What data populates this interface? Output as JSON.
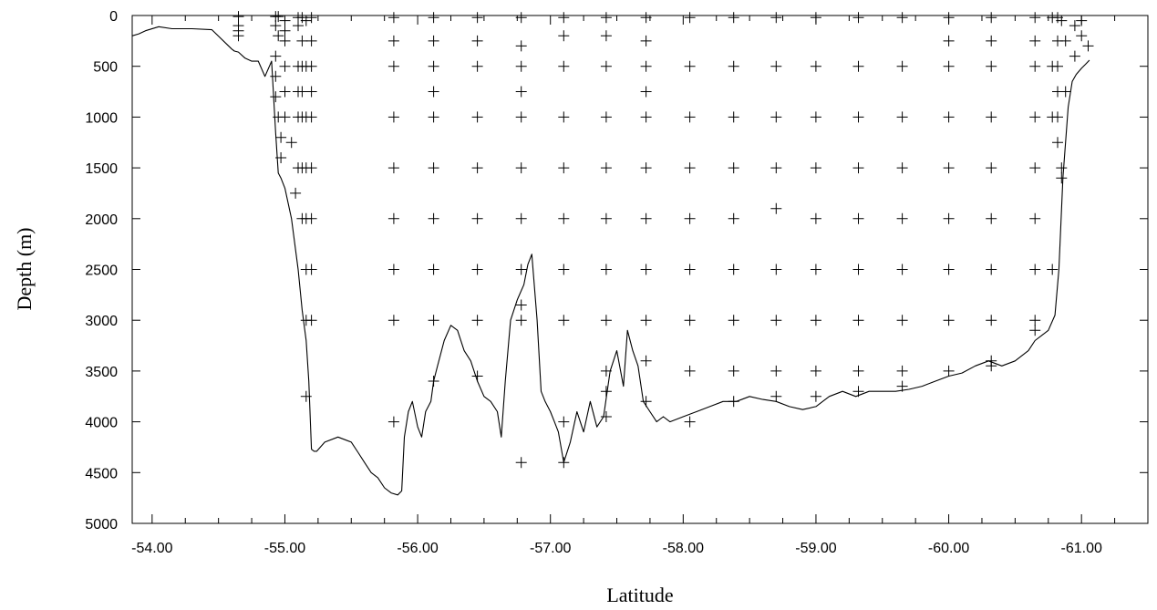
{
  "chart_data": {
    "type": "scatter",
    "title": "",
    "xlabel": "Latitude",
    "ylabel": "Depth (m)",
    "xlim": [
      -53.85,
      -61.5
    ],
    "ylim": [
      0,
      5000
    ],
    "y_inverted": true,
    "grid": false,
    "x_ticks": [
      "-54.00",
      "-55.00",
      "-56.00",
      "-57.00",
      "-58.00",
      "-59.00",
      "-60.00",
      "-61.00"
    ],
    "x_tick_values": [
      -54,
      -55,
      -56,
      -57,
      -58,
      -59,
      -60,
      -61
    ],
    "y_ticks": [
      "0",
      "500",
      "1000",
      "1500",
      "2000",
      "2500",
      "3000",
      "3500",
      "4000",
      "4500",
      "5000"
    ],
    "y_tick_values": [
      0,
      500,
      1000,
      1500,
      2000,
      2500,
      3000,
      3500,
      4000,
      4500,
      5000
    ],
    "series": [
      {
        "kind": "line",
        "x": [
          -53.85,
          -53.9,
          -53.95,
          -54.05,
          -54.15,
          -54.3,
          -54.45,
          -54.6,
          -54.62,
          -54.65,
          -54.7,
          -54.75,
          -54.8,
          -54.85,
          -54.9,
          -54.93,
          -54.95,
          -54.97,
          -55.0,
          -55.05,
          -55.1,
          -55.13,
          -55.16,
          -55.18,
          -55.2,
          -55.22,
          -55.24,
          -55.3,
          -55.4,
          -55.5,
          -55.55,
          -55.6,
          -55.65,
          -55.7,
          -55.75,
          -55.8,
          -55.85,
          -55.88,
          -55.9,
          -55.93,
          -55.96,
          -56.0,
          -56.03,
          -56.06,
          -56.1,
          -56.12,
          -56.15,
          -56.2,
          -56.25,
          -56.3,
          -56.35,
          -56.4,
          -56.45,
          -56.5,
          -56.55,
          -56.6,
          -56.63,
          -56.66,
          -56.7,
          -56.75,
          -56.8,
          -56.83,
          -56.86,
          -56.9,
          -56.93,
          -56.96,
          -57.0,
          -57.03,
          -57.06,
          -57.1,
          -57.15,
          -57.2,
          -57.25,
          -57.3,
          -57.35,
          -57.4,
          -57.45,
          -57.5,
          -57.55,
          -57.58,
          -57.62,
          -57.66,
          -57.7,
          -57.75,
          -57.8,
          -57.85,
          -57.9,
          -58.0,
          -58.1,
          -58.2,
          -58.3,
          -58.4,
          -58.5,
          -58.6,
          -58.7,
          -58.8,
          -58.9,
          -59.0,
          -59.1,
          -59.2,
          -59.3,
          -59.4,
          -59.5,
          -59.6,
          -59.7,
          -59.8,
          -59.9,
          -60.0,
          -60.1,
          -60.2,
          -60.3,
          -60.4,
          -60.5,
          -60.6,
          -60.65,
          -60.7,
          -60.75,
          -60.8,
          -60.83,
          -60.86,
          -60.9,
          -60.93,
          -60.96,
          -61.0,
          -61.03,
          -61.06
        ],
        "y": [
          200,
          180,
          150,
          110,
          130,
          130,
          140,
          330,
          350,
          360,
          420,
          450,
          450,
          600,
          450,
          1150,
          1550,
          1600,
          1700,
          2000,
          2500,
          2900,
          3200,
          3600,
          4270,
          4290,
          4290,
          4200,
          4150,
          4200,
          4300,
          4400,
          4500,
          4550,
          4650,
          4700,
          4720,
          4680,
          4150,
          3900,
          3800,
          4050,
          4150,
          3900,
          3800,
          3600,
          3450,
          3200,
          3050,
          3100,
          3300,
          3400,
          3600,
          3750,
          3800,
          3900,
          4150,
          3600,
          3000,
          2800,
          2650,
          2450,
          2350,
          3000,
          3700,
          3800,
          3900,
          4000,
          4100,
          4400,
          4200,
          3900,
          4100,
          3800,
          4050,
          3950,
          3500,
          3300,
          3650,
          3100,
          3300,
          3450,
          3800,
          3900,
          4000,
          3950,
          4000,
          3950,
          3900,
          3850,
          3800,
          3800,
          3750,
          3780,
          3800,
          3850,
          3880,
          3850,
          3750,
          3700,
          3750,
          3700,
          3700,
          3700,
          3680,
          3650,
          3600,
          3550,
          3520,
          3450,
          3400,
          3450,
          3400,
          3300,
          3200,
          3150,
          3100,
          2950,
          2500,
          1600,
          900,
          650,
          580,
          520,
          480,
          440
        ]
      },
      {
        "kind": "points",
        "marker": "+",
        "x": [
          -54.65,
          -54.65,
          -54.65,
          -54.65,
          -54.93,
          -54.93,
          -54.93,
          -54.93,
          -54.93,
          -54.95,
          -54.95,
          -54.95,
          -54.97,
          -54.97,
          -55.0,
          -55.0,
          -55.0,
          -55.0,
          -55.0,
          -55.0,
          -55.05,
          -55.08,
          -55.1,
          -55.1,
          -55.1,
          -55.1,
          -55.1,
          -55.1,
          -55.13,
          -55.13,
          -55.13,
          -55.13,
          -55.13,
          -55.13,
          -55.13,
          -55.16,
          -55.16,
          -55.16,
          -55.16,
          -55.16,
          -55.16,
          -55.16,
          -55.16,
          -55.2,
          -55.2,
          -55.2,
          -55.2,
          -55.2,
          -55.2,
          -55.2,
          -55.2,
          -55.2,
          -55.82,
          -55.82,
          -55.82,
          -55.82,
          -55.82,
          -55.82,
          -55.82,
          -55.82,
          -55.82,
          -56.12,
          -56.12,
          -56.12,
          -56.12,
          -56.12,
          -56.12,
          -56.12,
          -56.12,
          -56.12,
          -56.12,
          -56.45,
          -56.45,
          -56.45,
          -56.45,
          -56.45,
          -56.45,
          -56.45,
          -56.45,
          -56.45,
          -56.78,
          -56.78,
          -56.78,
          -56.78,
          -56.78,
          -56.78,
          -56.78,
          -56.78,
          -56.78,
          -56.78,
          -56.78,
          -57.1,
          -57.1,
          -57.1,
          -57.1,
          -57.1,
          -57.1,
          -57.1,
          -57.1,
          -57.1,
          -57.1,
          -57.42,
          -57.42,
          -57.42,
          -57.42,
          -57.42,
          -57.42,
          -57.42,
          -57.42,
          -57.42,
          -57.42,
          -57.42,
          -57.72,
          -57.72,
          -57.72,
          -57.72,
          -57.72,
          -57.72,
          -57.72,
          -57.72,
          -57.72,
          -57.72,
          -57.72,
          -58.05,
          -58.05,
          -58.05,
          -58.05,
          -58.05,
          -58.05,
          -58.05,
          -58.05,
          -58.05,
          -58.38,
          -58.38,
          -58.38,
          -58.38,
          -58.38,
          -58.38,
          -58.38,
          -58.38,
          -58.38,
          -58.7,
          -58.7,
          -58.7,
          -58.7,
          -58.7,
          -58.7,
          -58.7,
          -58.7,
          -58.7,
          -59.0,
          -59.0,
          -59.0,
          -59.0,
          -59.0,
          -59.0,
          -59.0,
          -59.0,
          -59.0,
          -59.32,
          -59.32,
          -59.32,
          -59.32,
          -59.32,
          -59.32,
          -59.32,
          -59.32,
          -59.32,
          -59.65,
          -59.65,
          -59.65,
          -59.65,
          -59.65,
          -59.65,
          -59.65,
          -59.65,
          -59.65,
          -60.0,
          -60.0,
          -60.0,
          -60.0,
          -60.0,
          -60.0,
          -60.0,
          -60.0,
          -60.0,
          -60.32,
          -60.32,
          -60.32,
          -60.32,
          -60.32,
          -60.32,
          -60.32,
          -60.32,
          -60.32,
          -60.32,
          -60.65,
          -60.65,
          -60.65,
          -60.65,
          -60.65,
          -60.65,
          -60.65,
          -60.65,
          -60.65,
          -60.78,
          -60.78,
          -60.78,
          -60.78,
          -60.82,
          -60.82,
          -60.82,
          -60.82,
          -60.82,
          -60.82,
          -60.85,
          -60.85,
          -60.85,
          -60.88,
          -60.88,
          -60.95,
          -60.95,
          -61.0,
          -61.0,
          -61.05
        ],
        "y": [
          10,
          100,
          150,
          200,
          10,
          100,
          400,
          600,
          800,
          10,
          200,
          1000,
          1200,
          1400,
          50,
          150,
          250,
          500,
          750,
          1000,
          1250,
          1750,
          20,
          100,
          500,
          750,
          1000,
          1500,
          20,
          250,
          500,
          750,
          1000,
          1500,
          2000,
          50,
          500,
          1000,
          1500,
          2000,
          2500,
          3000,
          3750,
          20,
          250,
          500,
          750,
          1000,
          1500,
          2000,
          2500,
          3000,
          20,
          250,
          500,
          1000,
          1500,
          2000,
          2500,
          3000,
          4000,
          20,
          250,
          500,
          750,
          1000,
          1500,
          2000,
          2500,
          3000,
          3600,
          20,
          250,
          500,
          1000,
          1500,
          2000,
          2500,
          3000,
          3550,
          20,
          300,
          500,
          750,
          1000,
          1500,
          2000,
          2500,
          2850,
          3000,
          4400,
          20,
          200,
          500,
          1000,
          1500,
          2000,
          2500,
          3000,
          4000,
          4400,
          20,
          200,
          500,
          1000,
          1500,
          2000,
          2500,
          3000,
          3500,
          3950,
          3700,
          20,
          250,
          500,
          750,
          1000,
          1500,
          2000,
          2500,
          3000,
          3400,
          3800,
          20,
          500,
          1000,
          1500,
          2000,
          2500,
          3000,
          3500,
          4000,
          20,
          500,
          1000,
          1500,
          2000,
          2500,
          3000,
          3500,
          3800,
          20,
          500,
          1000,
          1500,
          1900,
          2500,
          3000,
          3500,
          3750,
          20,
          500,
          1000,
          1500,
          2000,
          2500,
          3000,
          3500,
          3750,
          20,
          500,
          1000,
          1500,
          2000,
          2500,
          3000,
          3500,
          3700,
          20,
          500,
          1000,
          1500,
          2000,
          2500,
          3000,
          3500,
          3650,
          20,
          250,
          500,
          1000,
          1500,
          2000,
          2500,
          3000,
          3500,
          20,
          250,
          500,
          1000,
          1500,
          2000,
          2500,
          3000,
          3400,
          3450,
          20,
          250,
          500,
          1000,
          1500,
          2000,
          2500,
          3000,
          3100,
          20,
          500,
          1000,
          2500,
          20,
          250,
          500,
          750,
          1000,
          1250,
          1500,
          1600,
          50,
          250,
          750,
          100,
          400,
          50,
          200,
          300
        ]
      }
    ]
  }
}
